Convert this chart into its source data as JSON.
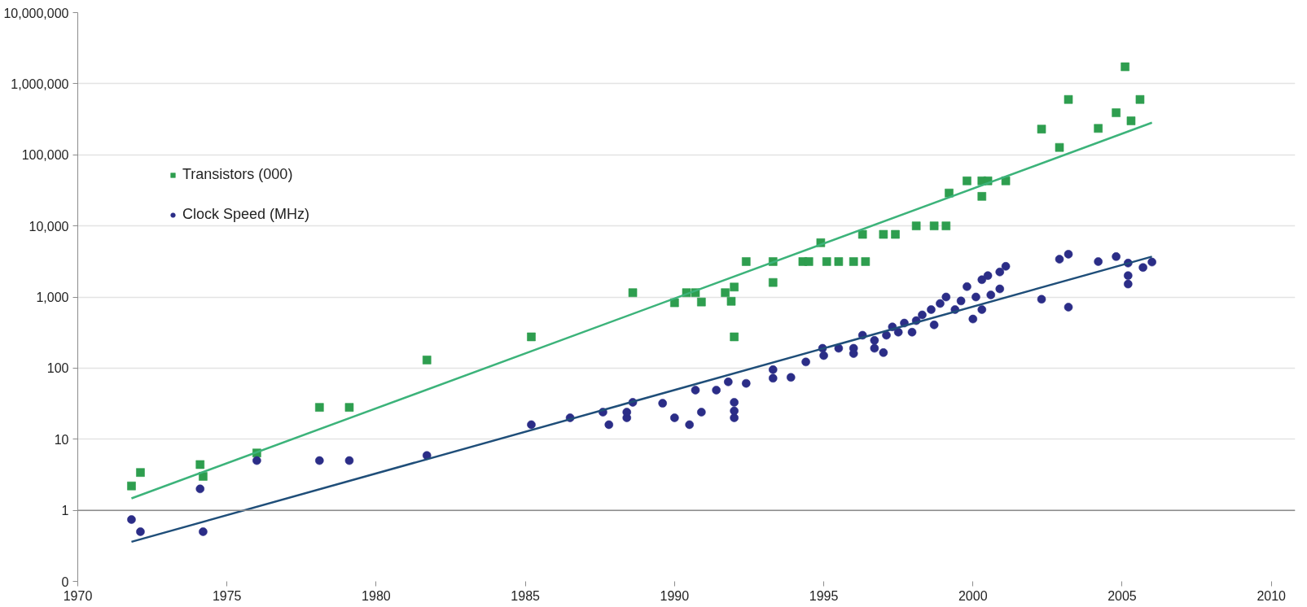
{
  "chart_data": {
    "type": "scatter",
    "log": "y",
    "grid": "y",
    "legend": "top left",
    "xlim": [
      1970,
      2010.8
    ],
    "xticks": [
      1970,
      1975,
      1980,
      1985,
      1990,
      1995,
      2000,
      2005,
      2010
    ],
    "ylim": [
      0.1,
      10000000
    ],
    "yticks": [
      {
        "value": 0.1,
        "label": "0"
      },
      1,
      {
        "value": 10,
        "label": "10"
      },
      {
        "value": 100,
        "label": "100"
      },
      {
        "value": 1000,
        "label": "1,000"
      },
      {
        "value": 10000,
        "label": "10,000"
      },
      {
        "value": 100000,
        "label": "100,000"
      },
      {
        "value": 1000000,
        "label": "1,000,000"
      },
      {
        "value": 10000000,
        "label": "10,000,000"
      }
    ],
    "ref_lines": [
      {
        "axis": "y",
        "value": 1,
        "color": "#8c8c8c"
      }
    ],
    "series": [
      {
        "name": "Transistors (000)",
        "marker": "square",
        "color": "#2e9e4f",
        "x": [
          1971.8,
          1972.1,
          1974.1,
          1974.2,
          1976.0,
          1978.1,
          1979.1,
          1981.7,
          1985.2,
          1988.6,
          1990.0,
          1990.4,
          1990.7,
          1990.9,
          1991.7,
          1991.9,
          1992.0,
          1992.0,
          1992.4,
          1993.3,
          1993.3,
          1994.3,
          1994.5,
          1994.9,
          1995.1,
          1995.5,
          1996.0,
          1996.4,
          1996.3,
          1997.0,
          1997.4,
          1998.1,
          1998.7,
          1999.1,
          1999.2,
          1999.8,
          2000.3,
          2000.5,
          2001.1,
          2000.3,
          2002.3,
          2002.9,
          2003.2,
          2004.2,
          2004.8,
          2005.1,
          2005.3,
          2005.6
        ],
        "values": [
          2.2,
          3.4,
          4.4,
          3.0,
          6.4,
          28,
          28,
          130,
          275,
          1150,
          830,
          1150,
          1150,
          850,
          1150,
          870,
          1380,
          275,
          3150,
          3150,
          1600,
          3150,
          3150,
          5800,
          3150,
          3150,
          3150,
          3150,
          7600,
          7600,
          7600,
          10000,
          10000,
          10000,
          29000,
          43000,
          43000,
          43000,
          43000,
          26000,
          230000,
          127000,
          600000,
          235000,
          390000,
          1730000,
          300000,
          600000
        ]
      },
      {
        "name": "Clock Speed (MHz)",
        "marker": "circle",
        "color": "#2b2d87",
        "x": [
          1971.8,
          1972.1,
          1974.1,
          1974.2,
          1976.0,
          1978.1,
          1979.1,
          1981.7,
          1985.2,
          1986.5,
          1987.6,
          1987.8,
          1988.4,
          1988.6,
          1988.4,
          1989.6,
          1990.0,
          1990.5,
          1990.7,
          1990.9,
          1991.4,
          1991.8,
          1992.0,
          1992.0,
          1992.0,
          1992.4,
          1993.3,
          1993.3,
          1993.9,
          1994.4,
          1994.96,
          1995.0,
          1995.5,
          1996.0,
          1996.0,
          1996.3,
          1996.7,
          1996.7,
          1997.0,
          1997.1,
          1997.3,
          1997.5,
          1997.7,
          1997.96,
          1998.1,
          1998.3,
          1998.6,
          1998.7,
          1998.9,
          1999.1,
          1999.4,
          1999.6,
          1999.8,
          2000.0,
          2000.1,
          2000.3,
          2000.3,
          2000.5,
          2000.6,
          2000.9,
          2000.9,
          2001.1,
          2002.3,
          2002.9,
          2003.2,
          2003.2,
          2004.2,
          2004.8,
          2005.2,
          2005.2,
          2005.2,
          2005.7,
          2006.0
        ],
        "values": [
          0.74,
          0.5,
          2.0,
          0.5,
          5.0,
          5.0,
          5.0,
          5.9,
          16,
          20,
          24,
          16,
          20,
          33,
          24,
          32,
          20,
          16,
          49,
          24,
          49,
          64,
          33,
          20,
          25,
          61,
          95,
          72,
          74,
          122,
          190,
          150,
          190,
          190,
          160,
          290,
          245,
          190,
          165,
          290,
          380,
          320,
          430,
          320,
          465,
          560,
          665,
          405,
          810,
          1000,
          665,
          880,
          1400,
          490,
          1000,
          1750,
          665,
          2000,
          1070,
          1300,
          2250,
          2700,
          930,
          3400,
          720,
          4000,
          3150,
          3700,
          3000,
          1520,
          2000,
          2600,
          3100
        ]
      },
      {
        "type": "line",
        "marker": "none",
        "color": "#3cb37a",
        "x": [
          1971.8,
          2006.0
        ],
        "values": [
          1.47,
          283000
        ]
      },
      {
        "type": "line",
        "marker": "none",
        "color": "#1f4e79",
        "x": [
          1971.8,
          2006.0
        ],
        "values": [
          0.36,
          3700
        ]
      }
    ]
  }
}
